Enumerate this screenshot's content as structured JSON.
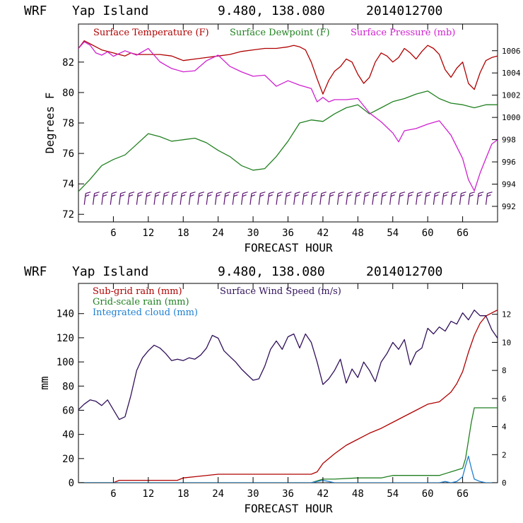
{
  "chart_data": [
    {
      "type": "line",
      "title": {
        "model": "WRF",
        "location": "Yap Island",
        "coords": "9.480, 138.080",
        "run": "2014012700"
      },
      "xlabel": "FORECAST HOUR",
      "ylabel": "Degrees F",
      "y2label": "",
      "xlim": [
        0,
        72
      ],
      "ylim": [
        71.5,
        84.5
      ],
      "y2lim": [
        990.6,
        1008.4
      ],
      "xticks": [
        6,
        12,
        18,
        24,
        30,
        36,
        42,
        48,
        54,
        60,
        66
      ],
      "yticks": [
        72,
        74,
        76,
        78,
        80,
        82
      ],
      "y2ticks": [
        992,
        994,
        996,
        998,
        1000,
        1002,
        1004,
        1006
      ],
      "legend": [
        {
          "label": "Surface Temperature (F)",
          "color": "#b00000"
        },
        {
          "label": "Surface Dewpoint (F)",
          "color": "#208020"
        },
        {
          "label": "Surface Pressure (mb)",
          "color": "#d020d0"
        }
      ],
      "series": [
        {
          "name": "Surface Temperature (F)",
          "color": "#b00000",
          "axis": "left",
          "x": [
            0,
            1,
            2,
            3,
            4,
            5,
            6,
            7,
            8,
            9,
            10,
            12,
            14,
            16,
            18,
            20,
            22,
            24,
            26,
            28,
            30,
            32,
            34,
            36,
            37,
            38,
            39,
            40,
            41,
            42,
            43,
            44,
            45,
            46,
            47,
            48,
            49,
            50,
            51,
            52,
            53,
            54,
            55,
            56,
            57,
            58,
            59,
            60,
            61,
            62,
            63,
            64,
            65,
            66,
            67,
            68,
            69,
            70,
            71,
            72
          ],
          "y": [
            82.9,
            83.4,
            83.2,
            83.0,
            82.8,
            82.7,
            82.6,
            82.5,
            82.4,
            82.6,
            82.5,
            82.5,
            82.5,
            82.4,
            82.1,
            82.2,
            82.3,
            82.4,
            82.5,
            82.7,
            82.8,
            82.9,
            82.9,
            83.0,
            83.1,
            83.0,
            82.8,
            82.0,
            80.9,
            79.9,
            80.8,
            81.4,
            81.7,
            82.2,
            82.0,
            81.2,
            80.6,
            81.0,
            82.0,
            82.6,
            82.4,
            82.0,
            82.3,
            82.9,
            82.6,
            82.2,
            82.7,
            83.1,
            82.9,
            82.5,
            81.5,
            81.0,
            81.6,
            82.0,
            80.6,
            80.2,
            81.3,
            82.1,
            82.3,
            82.4
          ]
        },
        {
          "name": "Surface Dewpoint (F)",
          "color": "#208020",
          "axis": "left",
          "x": [
            0,
            2,
            4,
            6,
            8,
            10,
            12,
            14,
            16,
            18,
            20,
            22,
            24,
            26,
            28,
            30,
            32,
            34,
            36,
            38,
            40,
            42,
            44,
            46,
            48,
            50,
            52,
            54,
            56,
            58,
            60,
            62,
            64,
            66,
            68,
            70,
            72
          ],
          "y": [
            73.5,
            74.3,
            75.2,
            75.6,
            75.9,
            76.6,
            77.3,
            77.1,
            76.8,
            76.9,
            77.0,
            76.7,
            76.2,
            75.8,
            75.2,
            74.9,
            75.0,
            75.8,
            76.8,
            78.0,
            78.2,
            78.1,
            78.6,
            79.0,
            79.2,
            78.6,
            79.0,
            79.4,
            79.6,
            79.9,
            80.1,
            79.6,
            79.3,
            79.2,
            79.0,
            79.2,
            79.2
          ]
        },
        {
          "name": "Surface Pressure (mb)",
          "color": "#d020d0",
          "axis": "right",
          "x": [
            0,
            1,
            2,
            3,
            4,
            5,
            6,
            8,
            10,
            12,
            14,
            16,
            18,
            20,
            22,
            24,
            26,
            28,
            30,
            32,
            34,
            36,
            38,
            40,
            41,
            42,
            43,
            44,
            46,
            48,
            50,
            52,
            54,
            55,
            56,
            58,
            60,
            62,
            64,
            66,
            67,
            68,
            69,
            70,
            71,
            72
          ],
          "y": [
            1006.2,
            1006.8,
            1006.5,
            1005.8,
            1005.6,
            1005.9,
            1005.5,
            1006.0,
            1005.6,
            1006.2,
            1005.0,
            1004.4,
            1004.1,
            1004.2,
            1005.1,
            1005.6,
            1004.6,
            1004.1,
            1003.7,
            1003.8,
            1002.8,
            1003.3,
            1002.9,
            1002.6,
            1001.4,
            1001.8,
            1001.4,
            1001.6,
            1001.6,
            1001.7,
            1000.4,
            999.6,
            998.6,
            997.8,
            998.8,
            999.0,
            999.4,
            999.7,
            998.4,
            996.3,
            994.4,
            993.4,
            995.0,
            996.3,
            997.6,
            998.0
          ]
        }
      ],
      "wind_barbs": {
        "color": "#5a1070",
        "level": 73.0,
        "x_start": 1,
        "x_end": 70,
        "count": 47
      }
    },
    {
      "type": "line",
      "title": {
        "model": "WRF",
        "location": "Yap Island",
        "coords": "9.480, 138.080",
        "run": "2014012700"
      },
      "xlabel": "FORECAST HOUR",
      "ylabel": "mm",
      "y2label": "",
      "xlim": [
        0,
        72
      ],
      "ylim": [
        0,
        165
      ],
      "y2lim": [
        0,
        14.2
      ],
      "xticks": [
        6,
        12,
        18,
        24,
        30,
        36,
        42,
        48,
        54,
        60,
        66
      ],
      "yticks": [
        0,
        20,
        40,
        60,
        80,
        100,
        120,
        140
      ],
      "y2ticks": [
        0,
        2,
        4,
        6,
        8,
        10,
        12
      ],
      "legend": [
        {
          "label": "Sub-grid rain (mm)",
          "color": "#b00000"
        },
        {
          "label": "Surface Wind Speed (m/s)",
          "color": "#30105a"
        },
        {
          "label": "Grid-scale rain (mm)",
          "color": "#208020"
        },
        {
          "label": "Integrated cloud (mm)",
          "color": "#1e7fd0"
        }
      ],
      "series": [
        {
          "name": "Sub-grid rain (mm)",
          "color": "#b00000",
          "axis": "left",
          "x": [
            0,
            6,
            7,
            12,
            17,
            18,
            20,
            24,
            30,
            36,
            40,
            41,
            42,
            44,
            46,
            48,
            50,
            52,
            54,
            56,
            58,
            60,
            62,
            64,
            65,
            66,
            67,
            68,
            69,
            70,
            72
          ],
          "y": [
            0,
            0,
            2,
            2,
            2,
            4,
            5,
            7,
            7,
            7,
            7,
            9,
            16,
            24,
            31,
            36,
            41,
            45,
            50,
            55,
            60,
            65,
            67,
            75,
            82,
            92,
            108,
            122,
            132,
            138,
            143
          ]
        },
        {
          "name": "Grid-scale rain (mm)",
          "color": "#208020",
          "axis": "left",
          "x": [
            0,
            40,
            42,
            44,
            48,
            52,
            54,
            60,
            62,
            64,
            66,
            66.5,
            67,
            67.5,
            68,
            72
          ],
          "y": [
            0,
            0,
            3,
            3,
            4,
            4,
            6,
            6,
            6,
            9,
            12,
            20,
            35,
            50,
            62,
            62
          ]
        },
        {
          "name": "Integrated cloud (mm)",
          "color": "#1e7fd0",
          "axis": "left",
          "x": [
            0,
            40,
            41,
            42,
            43,
            44,
            48,
            52,
            56,
            60,
            62,
            63,
            64,
            65,
            66,
            66.5,
            67,
            67.5,
            68,
            69,
            70,
            72
          ],
          "y": [
            0,
            0,
            1,
            2,
            1,
            0,
            0,
            0,
            0,
            0,
            0,
            1,
            0,
            1,
            5,
            14,
            22,
            12,
            3,
            1,
            0,
            0
          ]
        },
        {
          "name": "Surface Wind Speed (m/s)",
          "color": "#30105a",
          "axis": "right",
          "x": [
            0,
            1,
            2,
            3,
            4,
            5,
            6,
            7,
            8,
            9,
            10,
            11,
            12,
            13,
            14,
            15,
            16,
            17,
            18,
            19,
            20,
            21,
            22,
            23,
            24,
            25,
            26,
            27,
            28,
            29,
            30,
            31,
            32,
            33,
            34,
            35,
            36,
            37,
            38,
            39,
            40,
            41,
            42,
            43,
            44,
            45,
            46,
            47,
            48,
            49,
            50,
            51,
            52,
            53,
            54,
            55,
            56,
            57,
            58,
            59,
            60,
            61,
            62,
            63,
            64,
            65,
            66,
            67,
            68,
            69,
            70,
            71,
            72
          ],
          "y": [
            5.2,
            5.6,
            5.9,
            5.8,
            5.5,
            5.9,
            5.2,
            4.5,
            4.7,
            6.2,
            8.0,
            8.9,
            9.4,
            9.8,
            9.6,
            9.2,
            8.7,
            8.8,
            8.7,
            8.9,
            8.8,
            9.1,
            9.6,
            10.5,
            10.3,
            9.4,
            9.0,
            8.6,
            8.1,
            7.7,
            7.3,
            7.4,
            8.3,
            9.5,
            10.1,
            9.5,
            10.4,
            10.6,
            9.6,
            10.6,
            10.0,
            8.6,
            7.0,
            7.4,
            8.0,
            8.8,
            7.1,
            8.1,
            7.5,
            8.6,
            8.0,
            7.2,
            8.6,
            9.2,
            10.0,
            9.5,
            10.2,
            8.4,
            9.3,
            9.6,
            11.0,
            10.6,
            11.1,
            10.8,
            11.5,
            11.3,
            12.1,
            11.6,
            12.3,
            11.9,
            11.9,
            10.9,
            10.3
          ]
        }
      ]
    }
  ]
}
